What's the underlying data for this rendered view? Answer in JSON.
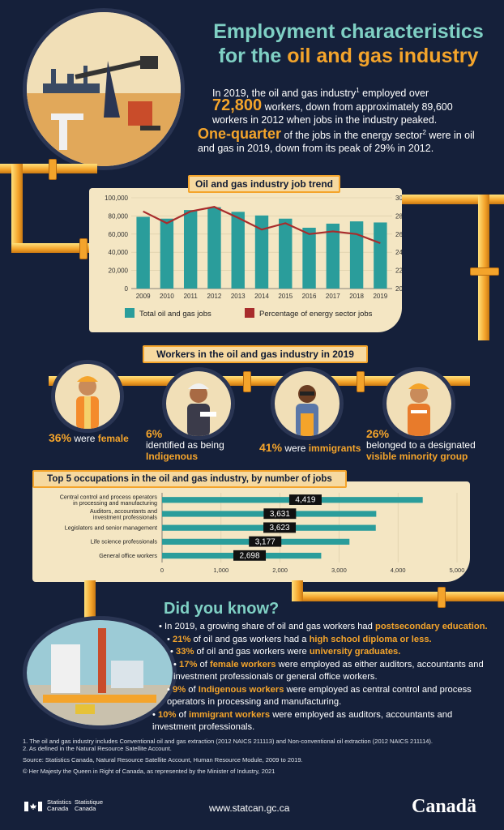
{
  "header": {
    "title_line1": "Employment characteristics",
    "title_line2_prefix": "for the ",
    "title_line2_highlight": "oil and gas industry",
    "intro_a": "In 2019, the oil and gas industry",
    "intro_a_sup": "1",
    "intro_a_rest": " employed over",
    "intro_big_number": "72,800",
    "intro_b": " workers, down from approximately 89,600 workers in 2012 when jobs in the industry peaked.",
    "quarter_big": "One-quarter",
    "quarter_text": " of the jobs in the energy sector",
    "quarter_sup": "2",
    "quarter_rest": " were in oil and gas in 2019, down from its peak of 29% in 2012."
  },
  "chart_data": [
    {
      "type": "bar",
      "title": "Oil and gas industry job trend",
      "categories": [
        "2009",
        "2010",
        "2011",
        "2012",
        "2013",
        "2014",
        "2015",
        "2016",
        "2017",
        "2018",
        "2019"
      ],
      "series": [
        {
          "name": "Total oil and gas jobs",
          "type": "bar",
          "axis": "left",
          "color": "#2a9d9b",
          "values": [
            79000,
            77000,
            86500,
            89600,
            84500,
            80500,
            77000,
            67000,
            71500,
            74000,
            72800
          ]
        },
        {
          "name": "Percentage of energy sector jobs",
          "type": "line",
          "axis": "right",
          "color": "#a82c2c",
          "values": [
            28.5,
            27.2,
            28.5,
            29,
            27.8,
            26.5,
            27.2,
            26,
            26.3,
            26,
            25
          ]
        }
      ],
      "ylim_left": [
        0,
        100000
      ],
      "yticks_left": [
        "0",
        "20,000",
        "40,000",
        "60,000",
        "80,000",
        "100,000"
      ],
      "ylim_right": [
        20,
        30
      ],
      "yticks_right": [
        "20",
        "22",
        "24",
        "26",
        "28",
        "30"
      ],
      "legend": "bottom"
    },
    {
      "type": "bar",
      "orientation": "horizontal",
      "title": "Top 5 occupations in the oil and gas industry, by number of jobs",
      "categories": [
        "Central control and process operators in processing and manufacturing",
        "Auditors, accountants and investment professionals",
        "Legislators and senior management",
        "Life science professionals",
        "General office workers"
      ],
      "values": [
        4419,
        3631,
        3623,
        3177,
        2698
      ],
      "value_labels": [
        "4,419",
        "3,631",
        "3,623",
        "3,177",
        "2,698"
      ],
      "xlim": [
        0,
        5000
      ],
      "xticks": [
        "0",
        "1,000",
        "2,000",
        "3,000",
        "4,000",
        "5,000"
      ],
      "color": "#2a9d9b"
    }
  ],
  "workers": {
    "title": "Workers in the oil and gas industry in 2019",
    "female_pct": "36%",
    "female_were": " were ",
    "female_word": "female",
    "indig_pct": "6%",
    "indig_text": "identified as being",
    "indig_word": "Indigenous",
    "immig_pct": "41%",
    "immig_were": " were ",
    "immig_word": "immigrants",
    "vm_pct": "26%",
    "vm_text": "belonged to a designated",
    "vm_word": "visible minority group"
  },
  "did_you_know": {
    "title": "Did you know?",
    "b1_a": "In 2019, a growing share of oil and gas workers had ",
    "b1_hl": "postsecondary education.",
    "b2_pct": "21%",
    "b2_a": " of oil and gas workers had a ",
    "b2_hl": "high school diploma or less.",
    "b3_pct": "33%",
    "b3_a": " of oil and gas workers were ",
    "b3_hl": "university graduates.",
    "b4_pct": "17%",
    "b4_mid": " of ",
    "b4_hl": "female workers",
    "b4_rest": " were employed as either auditors, accountants and investment professionals or general office workers.",
    "b5_pct": "9%",
    "b5_mid": " of ",
    "b5_hl": "Indigenous workers",
    "b5_rest": " were employed as central control and process operators in processing and manufacturing.",
    "b6_pct": "10%",
    "b6_mid": " of ",
    "b6_hl": "immigrant workers",
    "b6_rest": " were employed as auditors, accountants and investment professionals."
  },
  "footnotes": {
    "n1": "1. The oil and gas industry includes Conventional oil and gas extraction (2012 NAICS 211113) and Non-conventional oil extraction (2012 NAICS 211114).",
    "n2": "2. As defined in the Natural Resource Satellite Account.",
    "source": "Source: Statistics Canada, Natural Resource Satellite Account, Human Resource Module, 2009 to 2019.",
    "copyright": "© Her Majesty the Queen in Right of Canada, as represented by the Minister of Industry, 2021"
  },
  "footer": {
    "sc_en1": "Statistics",
    "sc_en2": "Canada",
    "sc_fr1": "Statistique",
    "sc_fr2": "Canada",
    "url": "www.statcan.gc.ca",
    "wordmark": "Canadä"
  },
  "icons": [
    "oil-field-illustration-icon",
    "female-worker-icon",
    "indigenous-worker-icon",
    "immigrant-worker-icon",
    "visible-minority-worker-icon",
    "refinery-illustration-icon",
    "canada-flag-icon"
  ]
}
